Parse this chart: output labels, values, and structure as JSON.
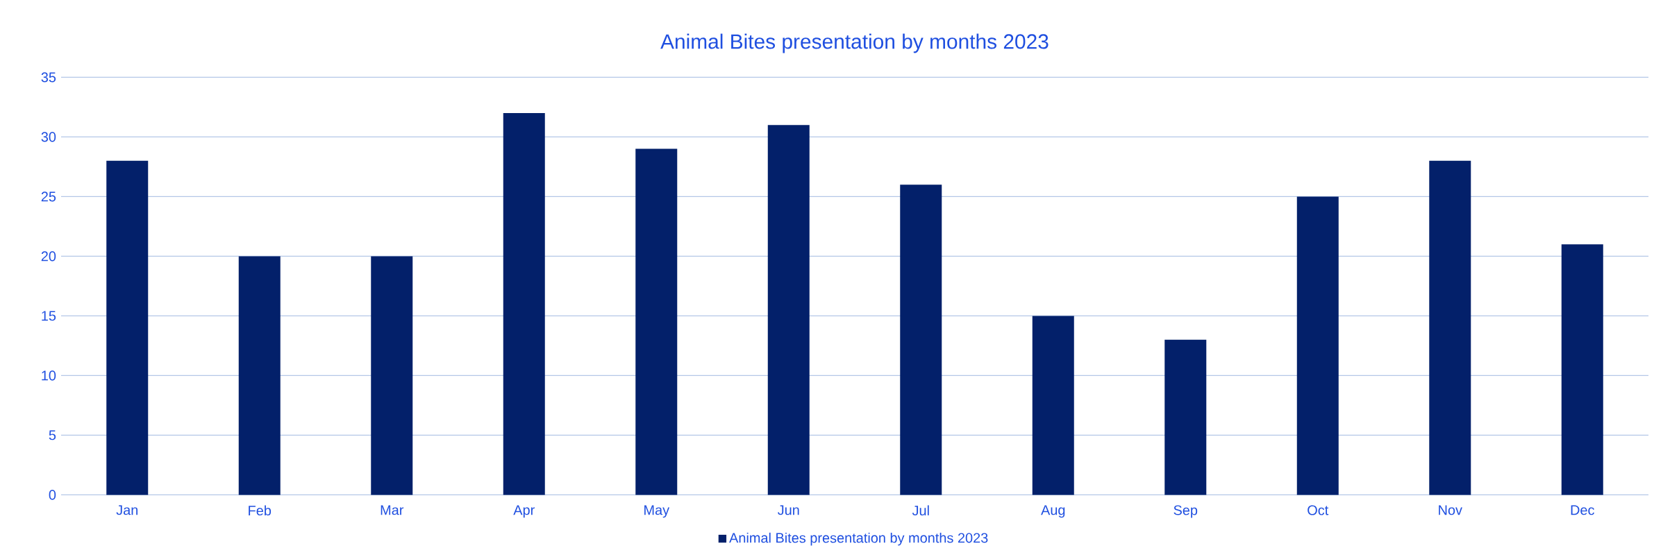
{
  "chart_data": {
    "type": "bar",
    "title": "Animal Bites presentation by months 2023",
    "categories": [
      "Jan",
      "Feb",
      "Mar",
      "Apr",
      "May",
      "Jun",
      "Jul",
      "Aug",
      "Sep",
      "Oct",
      "Nov",
      "Dec"
    ],
    "series": [
      {
        "name": "Animal Bites presentation by months 2023",
        "color": "#03206a",
        "values": [
          28,
          20,
          20,
          32,
          29,
          31,
          26,
          15,
          13,
          25,
          28,
          21
        ]
      }
    ],
    "ylim": [
      0,
      35
    ],
    "yticks": [
      0,
      5,
      10,
      15,
      20,
      25,
      30,
      35
    ],
    "grid": "y",
    "legend": "bottom"
  }
}
